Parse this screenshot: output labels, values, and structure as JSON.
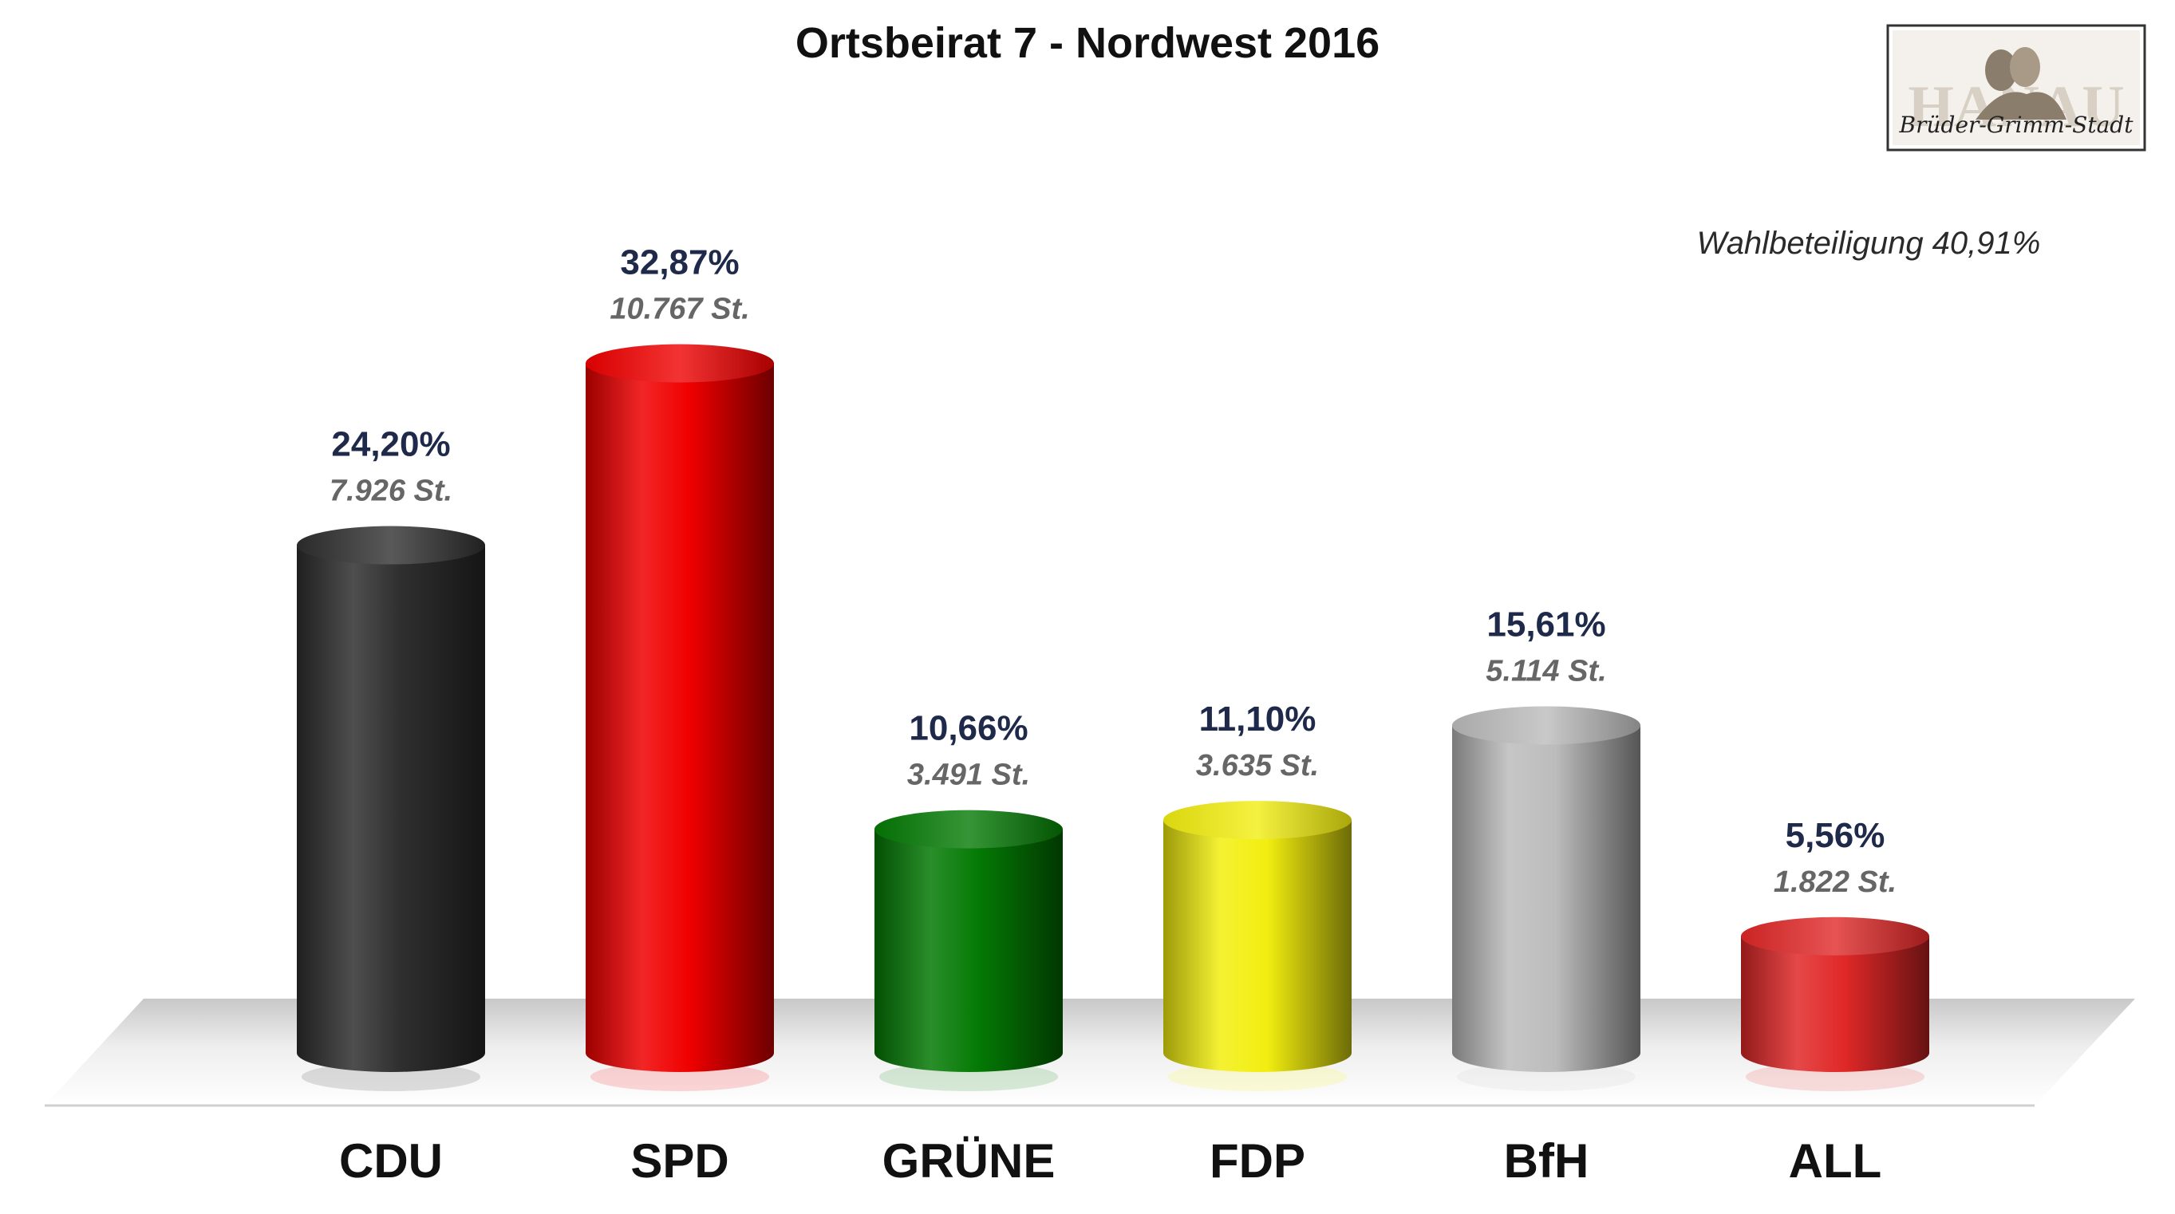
{
  "chart_data": {
    "type": "bar",
    "title": "Ortsbeirat 7 - Nordwest 2016",
    "turnout_label": "Wahlbeteiligung 40,91%",
    "categories": [
      "CDU",
      "SPD",
      "GRÜNE",
      "FDP",
      "BfH",
      "ALL"
    ],
    "values": [
      24.2,
      32.87,
      10.66,
      11.1,
      15.61,
      5.56
    ],
    "value_labels": [
      "24,20%",
      "32,87%",
      "10,66%",
      "11,10%",
      "15,61%",
      "5,56%"
    ],
    "vote_labels": [
      "7.926 St.",
      "10.767 St.",
      "3.491 St.",
      "3.635 St.",
      "5.114 St.",
      "1.822 St."
    ],
    "colors": [
      "#2f2f2f",
      "#f00000",
      "#047a04",
      "#f2ee10",
      "#bcbcbc",
      "#e02828"
    ],
    "ylim": [
      0,
      35
    ],
    "xlabel": "",
    "ylabel": "",
    "grid": false,
    "legend": "none"
  },
  "logo": {
    "text": "HANAU",
    "script_text": "Brüder-Grimm-Stadt",
    "icon": "grimm-brothers-portrait-icon"
  }
}
